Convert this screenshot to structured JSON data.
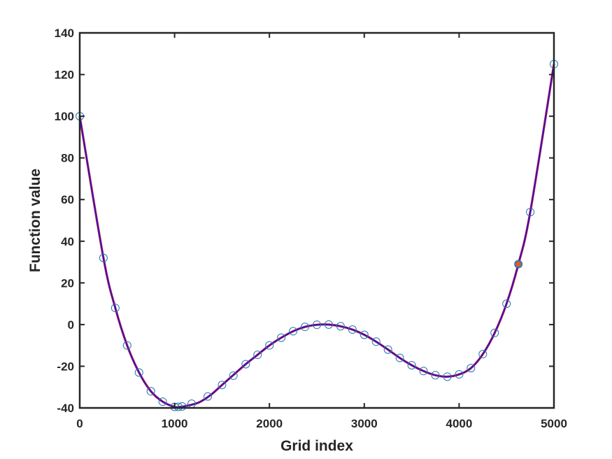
{
  "chart_data": {
    "type": "line",
    "title": "",
    "xlabel": "Grid index",
    "ylabel": "Function value",
    "xlim": [
      0,
      5000
    ],
    "ylim": [
      -40,
      140
    ],
    "xticks": [
      0,
      1000,
      2000,
      3000,
      4000,
      5000
    ],
    "yticks": [
      -40,
      -20,
      0,
      20,
      40,
      60,
      80,
      100,
      120,
      140
    ],
    "grid": false,
    "legend": "none",
    "colors": {
      "axis": "#262626",
      "curve_underlay": "#d62020",
      "curve": "#2a0fd6",
      "markers": "#1f77b4",
      "highlight": "#e8562a"
    },
    "series": [
      {
        "kind": "line",
        "style": "solid curve",
        "x": [
          0,
          250,
          375,
          500,
          625,
          750,
          875,
          1000,
          1062,
          1125,
          1250,
          1375,
          1500,
          1625,
          1750,
          1875,
          2000,
          2125,
          2250,
          2375,
          2500,
          2625,
          2750,
          2875,
          3000,
          3125,
          3250,
          3375,
          3500,
          3625,
          3750,
          3875,
          4000,
          4125,
          4250,
          4375,
          4500,
          4625,
          4750,
          5000
        ],
        "y": [
          100,
          32,
          8,
          -10,
          -23,
          -32,
          -37,
          -39.5,
          -39.5,
          -39,
          -37.5,
          -34,
          -29,
          -24,
          -19,
          -14.5,
          -10,
          -6.3,
          -3.2,
          -1.1,
          -0.1,
          0,
          -0.8,
          -2.4,
          -4.9,
          -8.2,
          -12,
          -16,
          -19.5,
          -22.3,
          -24.3,
          -25,
          -23.9,
          -20.9,
          -14.2,
          -4,
          10,
          29,
          54,
          125
        ]
      },
      {
        "kind": "markers",
        "style": "open circles",
        "x": [
          0,
          250,
          375,
          500,
          625,
          750,
          875,
          1000,
          1040,
          1080,
          1180,
          1350,
          1500,
          1620,
          1750,
          1875,
          2000,
          2125,
          2250,
          2375,
          2500,
          2625,
          2750,
          2875,
          3000,
          3125,
          3250,
          3375,
          3500,
          3625,
          3750,
          3875,
          4000,
          4125,
          4250,
          4375,
          4500,
          4625,
          4750,
          5000
        ],
        "y": [
          100,
          32,
          8,
          -10,
          -23,
          -32,
          -37,
          -39.5,
          -39.5,
          -39.3,
          -38,
          -34.5,
          -29,
          -24.5,
          -19,
          -14.5,
          -10,
          -6.3,
          -3.2,
          -1.1,
          -0.1,
          0,
          -0.8,
          -2.4,
          -4.9,
          -8.2,
          -12,
          -16,
          -19.5,
          -22.3,
          -24.3,
          -25,
          -23.9,
          -20.9,
          -14.2,
          -4,
          10,
          29,
          54,
          125
        ]
      },
      {
        "kind": "highlight",
        "style": "filled circle",
        "x": [
          4625
        ],
        "y": [
          29
        ]
      }
    ]
  }
}
